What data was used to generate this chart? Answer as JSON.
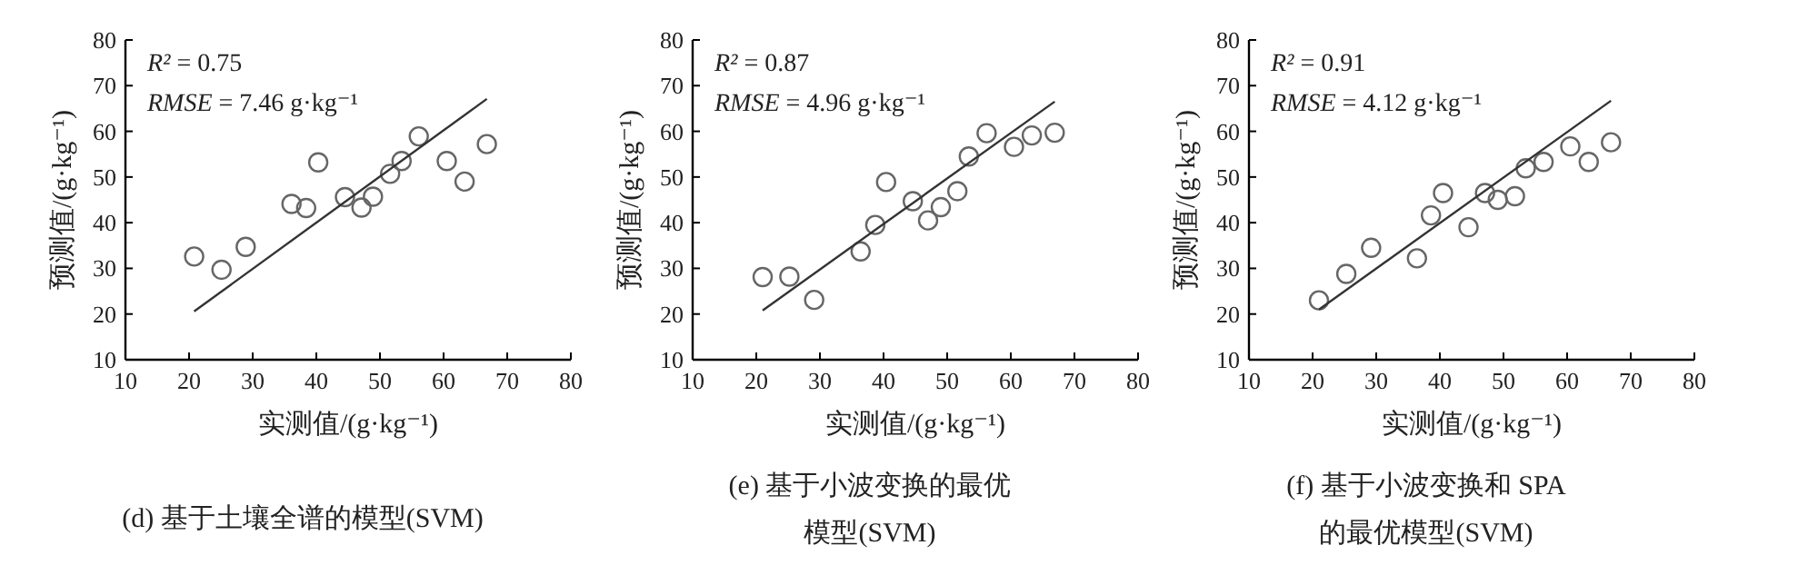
{
  "chart_data": [
    {
      "type": "scatter",
      "title": "(d) 基于土壤全谱的模型(SVM)",
      "xlabel": "实测值/(g·kg⁻¹)",
      "ylabel": "预测值/(g·kg⁻¹)",
      "xlim": [
        10,
        80
      ],
      "ylim": [
        10,
        80
      ],
      "xticks": [
        10,
        20,
        30,
        40,
        50,
        60,
        70,
        80
      ],
      "yticks": [
        10,
        20,
        30,
        40,
        50,
        60,
        70,
        80
      ],
      "annotations": [
        "R² = 0.75",
        "RMSE = 7.46 g·kg⁻¹"
      ],
      "series": [
        {
          "marker": "circle",
          "color": "#666666",
          "x": [
            20.8,
            25.1,
            28.9,
            36.1,
            38.4,
            40.3,
            44.5,
            47.1,
            48.9,
            51.6,
            53.4,
            56.1,
            60.5,
            63.3,
            66.8
          ],
          "values": [
            32.6,
            29.7,
            34.7,
            44.1,
            43.2,
            53.2,
            45.6,
            43.3,
            45.7,
            50.7,
            53.5,
            58.9,
            53.5,
            49.0,
            57.2
          ]
        },
        {
          "type": "line",
          "color": "#333333",
          "line_style": "solid",
          "x": [
            20.8,
            66.8
          ],
          "values": [
            20.6,
            67.1
          ]
        }
      ]
    },
    {
      "type": "scatter",
      "title": "(e) 基于小波变换的最优模型(SVM)",
      "xlabel": "实测值/(g·kg⁻¹)",
      "ylabel": "预测值/(g·kg⁻¹)",
      "xlim": [
        10,
        80
      ],
      "ylim": [
        10,
        80
      ],
      "xticks": [
        10,
        20,
        30,
        40,
        50,
        60,
        70,
        80
      ],
      "yticks": [
        10,
        20,
        30,
        40,
        50,
        60,
        70,
        80
      ],
      "annotations": [
        "R² = 0.87",
        "RMSE = 4.96 g·kg⁻¹"
      ],
      "series": [
        {
          "marker": "circle",
          "color": "#666666",
          "x": [
            21.0,
            25.2,
            29.1,
            36.4,
            38.7,
            40.4,
            44.6,
            47.0,
            49.0,
            51.6,
            53.4,
            56.2,
            60.5,
            63.3,
            66.9
          ],
          "values": [
            28.1,
            28.2,
            23.1,
            33.7,
            39.5,
            48.9,
            44.7,
            40.5,
            43.4,
            46.9,
            54.5,
            59.6,
            56.6,
            59.1,
            59.7
          ]
        },
        {
          "type": "line",
          "color": "#333333",
          "line_style": "solid",
          "x": [
            21.0,
            66.9
          ],
          "values": [
            20.8,
            66.5
          ]
        }
      ]
    },
    {
      "type": "scatter",
      "title": "(f) 基于小波变换和 SPA的最优模型(SVM)",
      "xlabel": "实测值/(g·kg⁻¹)",
      "ylabel": "预测值/(g·kg⁻¹)",
      "xlim": [
        10,
        80
      ],
      "ylim": [
        10,
        80
      ],
      "xticks": [
        10,
        20,
        30,
        40,
        50,
        60,
        70,
        80
      ],
      "yticks": [
        10,
        20,
        30,
        40,
        50,
        60,
        70,
        80
      ],
      "annotations": [
        "R² = 0.91",
        "RMSE = 4.12 g·kg⁻¹"
      ],
      "series": [
        {
          "marker": "circle",
          "color": "#666666",
          "x": [
            21.0,
            25.3,
            29.2,
            36.4,
            38.6,
            40.5,
            44.5,
            47.1,
            49.1,
            51.8,
            53.5,
            56.3,
            60.5,
            63.4,
            66.9
          ],
          "values": [
            23.0,
            28.8,
            34.5,
            32.2,
            41.6,
            46.5,
            39.0,
            46.5,
            45.0,
            45.8,
            51.9,
            53.3,
            56.7,
            53.3,
            57.6
          ]
        },
        {
          "type": "line",
          "color": "#333333",
          "line_style": "solid",
          "x": [
            21.0,
            66.9
          ],
          "values": [
            21.0,
            66.7
          ]
        }
      ]
    }
  ]
}
